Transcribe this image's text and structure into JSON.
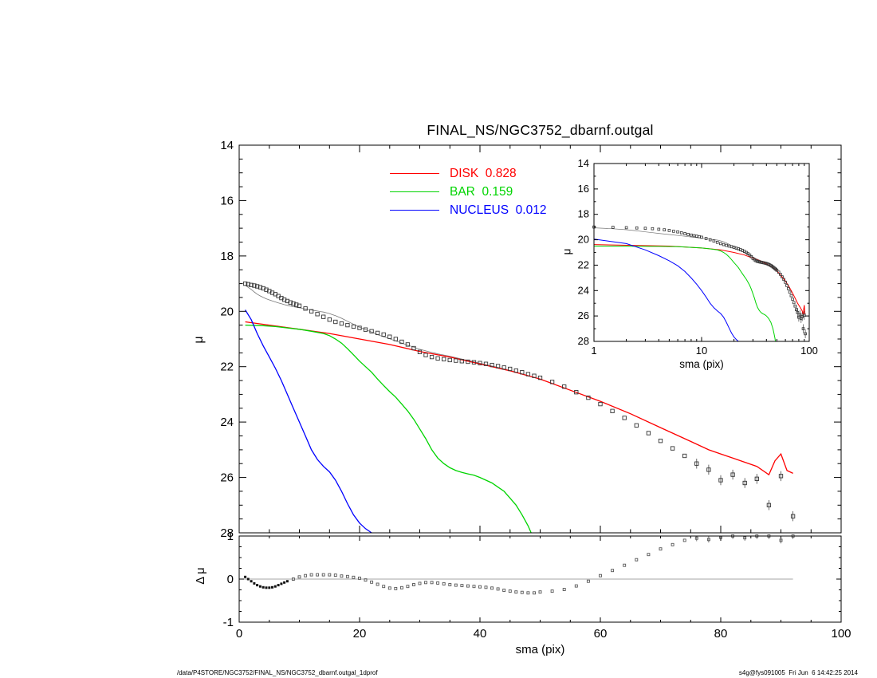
{
  "footer": {
    "left": "/data/P4STORE/NGC3752/FINAL_NS/NGC3752_dbarnf.outgal_1dprof",
    "right": "s4g@fys091005  Fri Jun  6 14:42:25 2014"
  },
  "chart_data": [
    {
      "type": "scatter",
      "panel": "main",
      "title": "FINAL_NS/NGC3752_dbarnf.outgal",
      "xlabel": "sma (pix)",
      "ylabel": "μ",
      "xlim": [
        0,
        100
      ],
      "ylim": [
        14,
        28
      ],
      "y_axis_inverted": true,
      "grid": false,
      "x_ticks": [
        0,
        20,
        40,
        60,
        80,
        100
      ],
      "y_ticks": [
        14,
        16,
        18,
        20,
        22,
        24,
        26,
        28
      ],
      "observed": {
        "name": "data",
        "marker": "open-square",
        "color": "#333333",
        "x": [
          1,
          1.5,
          2,
          2.5,
          3,
          3.5,
          4,
          4.5,
          5,
          5.5,
          6,
          6.5,
          7,
          7.5,
          8,
          8.5,
          9,
          9.5,
          10,
          11,
          12,
          13,
          14,
          15,
          16,
          17,
          18,
          19,
          20,
          21,
          22,
          23,
          24,
          25,
          26,
          27,
          28,
          29,
          30,
          31,
          32,
          33,
          34,
          35,
          36,
          37,
          38,
          39,
          40,
          41,
          42,
          43,
          44,
          45,
          46,
          47,
          48,
          49,
          50,
          52,
          54,
          56,
          58,
          60,
          62,
          64,
          66,
          68,
          70,
          72,
          74,
          76,
          78,
          80,
          82,
          84,
          86,
          88,
          90,
          92
        ],
        "y": [
          19.0,
          19.02,
          19.05,
          19.07,
          19.1,
          19.13,
          19.17,
          19.22,
          19.27,
          19.33,
          19.38,
          19.45,
          19.52,
          19.58,
          19.63,
          19.68,
          19.72,
          19.76,
          19.8,
          19.9,
          20.0,
          20.1,
          20.2,
          20.3,
          20.38,
          20.44,
          20.5,
          20.55,
          20.6,
          20.66,
          20.72,
          20.78,
          20.84,
          20.92,
          21.0,
          21.1,
          21.2,
          21.33,
          21.47,
          21.58,
          21.65,
          21.7,
          21.73,
          21.76,
          21.78,
          21.8,
          21.82,
          21.84,
          21.87,
          21.9,
          21.94,
          21.98,
          22.03,
          22.08,
          22.14,
          22.2,
          22.27,
          22.33,
          22.4,
          22.55,
          22.72,
          22.92,
          23.12,
          23.35,
          23.6,
          23.85,
          24.12,
          24.4,
          24.68,
          24.95,
          25.22,
          25.5,
          25.72,
          26.1,
          25.9,
          26.2,
          26.05,
          27.0,
          25.95,
          27.4
        ]
      },
      "model_total": {
        "name": "model",
        "color": "#777777",
        "derived": "sum-of-series-flux"
      },
      "series": [
        {
          "name": "DISK",
          "legend": "DISK  0.828",
          "fraction": 0.828,
          "color": "#ff0000",
          "x": [
            1,
            5,
            10,
            15,
            20,
            25,
            30,
            35,
            40,
            45,
            50,
            55,
            60,
            65,
            70,
            75,
            78,
            80,
            82,
            84,
            86,
            88,
            89,
            90,
            91,
            92
          ],
          "y": [
            20.38,
            20.5,
            20.65,
            20.8,
            21.0,
            21.2,
            21.45,
            21.65,
            21.9,
            22.15,
            22.45,
            22.85,
            23.25,
            23.7,
            24.2,
            24.7,
            25.0,
            25.15,
            25.3,
            25.45,
            25.6,
            25.9,
            25.4,
            25.15,
            25.75,
            25.85
          ]
        },
        {
          "name": "BAR",
          "legend": "BAR  0.159",
          "fraction": 0.159,
          "color": "#00d400",
          "x": [
            1,
            4,
            6,
            8,
            10,
            12,
            14,
            15,
            16,
            17,
            18,
            19,
            20,
            21,
            22,
            23,
            24,
            25,
            26,
            27,
            28,
            29,
            30,
            31,
            32,
            33,
            34,
            35,
            36,
            37,
            38,
            39,
            40,
            41,
            42,
            43,
            44,
            45,
            46,
            47,
            48,
            48.5
          ],
          "y": [
            20.5,
            20.52,
            20.55,
            20.6,
            20.65,
            20.72,
            20.8,
            20.88,
            21.0,
            21.15,
            21.35,
            21.57,
            21.8,
            22.0,
            22.2,
            22.45,
            22.68,
            22.9,
            23.1,
            23.35,
            23.6,
            23.9,
            24.25,
            24.6,
            25.0,
            25.3,
            25.5,
            25.65,
            25.75,
            25.82,
            25.87,
            25.92,
            26.0,
            26.1,
            26.2,
            26.35,
            26.5,
            26.75,
            27.0,
            27.35,
            27.75,
            28.0
          ]
        },
        {
          "name": "NUCLEUS",
          "legend": "NUCLEUS  0.012",
          "fraction": 0.012,
          "color": "#0000ff",
          "x": [
            1,
            2,
            3,
            4,
            5,
            6,
            7,
            8,
            9,
            10,
            11,
            12,
            13,
            14,
            15,
            16,
            17,
            18,
            19,
            20,
            21,
            22
          ],
          "y": [
            19.95,
            20.3,
            20.8,
            21.25,
            21.65,
            22.05,
            22.5,
            23.0,
            23.5,
            24.0,
            24.5,
            25.0,
            25.35,
            25.6,
            25.8,
            26.1,
            26.5,
            26.95,
            27.35,
            27.65,
            27.85,
            28.0
          ]
        }
      ]
    },
    {
      "type": "inset",
      "panel": "inset",
      "xlabel": "sma (pix)",
      "ylabel": "μ",
      "xscale": "log",
      "xlim": [
        1,
        100
      ],
      "ylim": [
        14,
        28
      ],
      "y_axis_inverted": true,
      "x_ticks": [
        1,
        10,
        100
      ],
      "y_ticks": [
        14,
        16,
        18,
        20,
        22,
        24,
        26,
        28
      ],
      "uses": "same observed data and series as main panel"
    },
    {
      "type": "residual",
      "panel": "residual",
      "xlabel": "sma (pix)",
      "ylabel": "Δ μ",
      "xlim": [
        0,
        100
      ],
      "ylim": [
        -1,
        1
      ],
      "x_ticks": [
        0,
        20,
        40,
        60,
        80,
        100
      ],
      "y_ticks": [
        1,
        0,
        -1
      ],
      "zero_line": true,
      "points": {
        "x": [
          1,
          1.5,
          2,
          2.5,
          3,
          3.5,
          4,
          4.5,
          5,
          5.5,
          6,
          6.5,
          7,
          7.5,
          8,
          9,
          10,
          11,
          12,
          13,
          14,
          15,
          16,
          17,
          18,
          19,
          20,
          21,
          22,
          23,
          24,
          25,
          26,
          27,
          28,
          29,
          30,
          31,
          32,
          33,
          34,
          35,
          36,
          37,
          38,
          39,
          40,
          41,
          42,
          43,
          44,
          45,
          46,
          47,
          48,
          49,
          50,
          52,
          54,
          56,
          58,
          60,
          62,
          64,
          66,
          68,
          70,
          72,
          74,
          76,
          78,
          80,
          82,
          84,
          86,
          88,
          90,
          92
        ],
        "y": [
          0.05,
          0.0,
          -0.05,
          -0.1,
          -0.14,
          -0.17,
          -0.19,
          -0.2,
          -0.2,
          -0.19,
          -0.17,
          -0.14,
          -0.11,
          -0.08,
          -0.05,
          0.0,
          0.05,
          0.08,
          0.1,
          0.1,
          0.1,
          0.1,
          0.09,
          0.07,
          0.06,
          0.04,
          0.02,
          -0.02,
          -0.07,
          -0.12,
          -0.17,
          -0.21,
          -0.22,
          -0.2,
          -0.17,
          -0.13,
          -0.1,
          -0.08,
          -0.08,
          -0.09,
          -0.11,
          -0.13,
          -0.14,
          -0.15,
          -0.16,
          -0.17,
          -0.18,
          -0.19,
          -0.21,
          -0.23,
          -0.26,
          -0.28,
          -0.3,
          -0.31,
          -0.32,
          -0.32,
          -0.3,
          -0.28,
          -0.24,
          -0.16,
          -0.05,
          0.08,
          0.2,
          0.32,
          0.45,
          0.57,
          0.7,
          0.8,
          0.9,
          0.95,
          0.92,
          0.97,
          1.0,
          0.96,
          1.0,
          1.0,
          0.9,
          1.0
        ]
      }
    }
  ]
}
